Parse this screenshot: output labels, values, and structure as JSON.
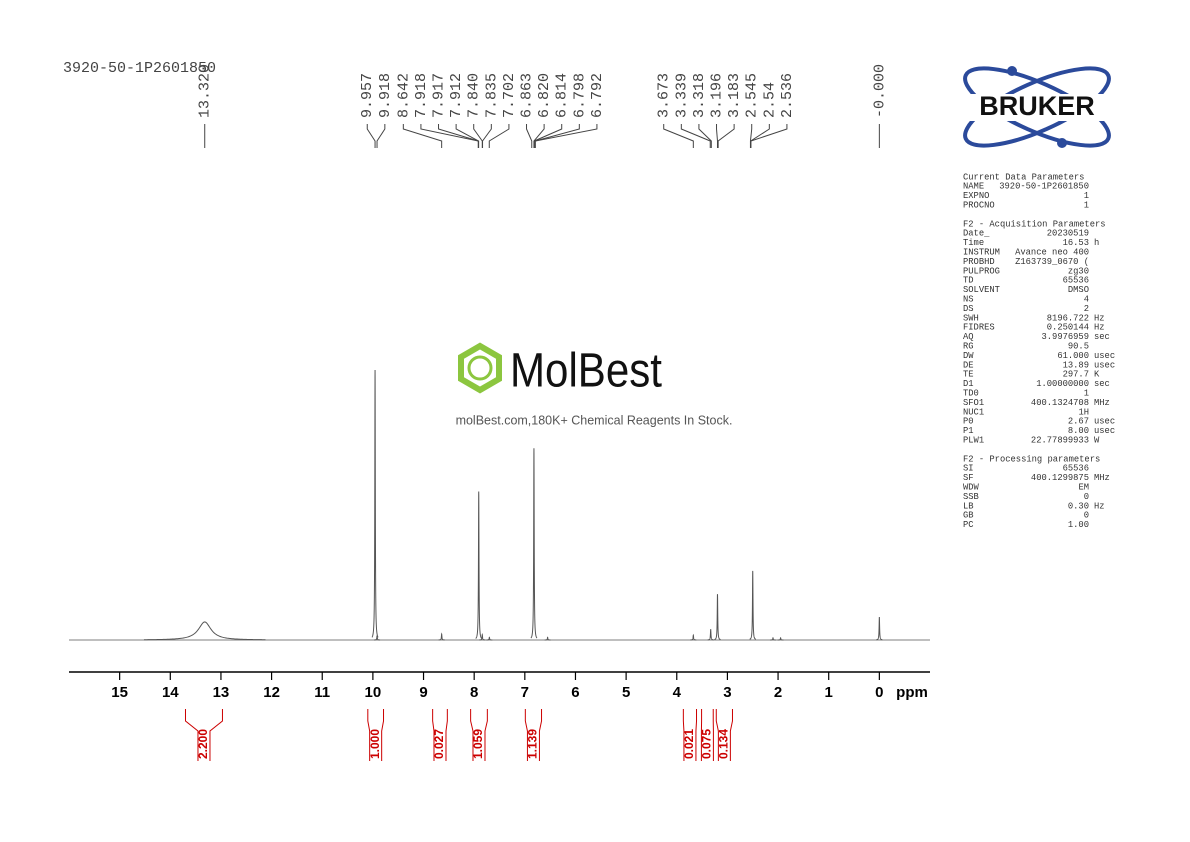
{
  "chart_data": {
    "type": "nmr",
    "sample_name": "3920-50-1P2601850",
    "xlim": [
      16,
      -1
    ],
    "xticks": [
      15,
      14,
      13,
      12,
      11,
      10,
      9,
      8,
      7,
      6,
      5,
      4,
      3,
      2,
      1,
      0
    ],
    "xlabel": "ppm",
    "ylim": [
      0,
      100
    ],
    "color": "#555555",
    "peaks": {
      "x": [
        13.32,
        9.957,
        9.918,
        8.642,
        7.91,
        7.84,
        7.7,
        6.82,
        6.55,
        3.673,
        3.33,
        3.196,
        2.5,
        2.1,
        1.95,
        0
      ],
      "values": [
        6.7,
        100,
        1.5,
        2.2,
        55,
        2,
        1,
        71,
        1,
        1.8,
        4,
        17,
        25.6,
        0.8,
        0.8,
        8.5
      ],
      "widths": [
        0.15,
        0.006,
        0.006,
        0.006,
        0.006,
        0.006,
        0.006,
        0.006,
        0.006,
        0.006,
        0.006,
        0.006,
        0.006,
        0.006,
        0.006,
        0.006
      ]
    },
    "peak_picks": [
      {
        "value": 13.32,
        "label": "13.320"
      },
      9.957,
      9.918,
      8.642,
      7.918,
      7.917,
      7.912,
      {
        "value": 7.84,
        "label": "7.840"
      },
      7.835,
      7.702,
      6.863,
      {
        "value": 6.82,
        "label": "6.820"
      },
      6.814,
      6.798,
      6.792,
      3.673,
      3.339,
      3.318,
      3.196,
      3.183,
      2.545,
      2.54,
      2.536,
      {
        "value": 0,
        "label": "-0.000"
      }
    ],
    "integrals": {
      "values": [
        2.2,
        1,
        0.027,
        1.059,
        1.139,
        0.021,
        0.075,
        0.134
      ],
      "value_labels": [
        "2.200",
        "1.000",
        "0.027",
        "1.059",
        "1.139",
        "0.021",
        "0.075",
        "0.134"
      ],
      "ranges": [
        [
          13.7,
          12.97
        ],
        [
          10.1,
          9.79
        ],
        [
          8.82,
          8.53
        ],
        [
          8.07,
          7.74
        ],
        [
          6.99,
          6.67
        ],
        [
          3.87,
          3.61
        ],
        [
          3.51,
          3.28
        ],
        [
          3.22,
          2.9
        ]
      ],
      "color": "#cc0000"
    }
  },
  "watermark": {
    "title": "MolBest",
    "subtitle": "molBest.com,180K+ Chemical Reagents In Stock."
  },
  "logo": "BRUKER",
  "parameters": [
    {
      "title": "Current Data Parameters",
      "rows": [
        [
          "NAME",
          "3920-50-1P2601850"
        ],
        [
          "EXPNO",
          "1"
        ],
        [
          "PROCNO",
          "1"
        ]
      ]
    },
    {
      "title": "F2 - Acquisition Parameters",
      "rows": [
        [
          "Date_",
          "20230519"
        ],
        [
          "Time",
          "16.53",
          "h"
        ],
        [
          "INSTRUM",
          "Avance neo 400"
        ],
        [
          "PROBHD",
          "Z163739_0670 ("
        ],
        [
          "PULPROG",
          "zg30"
        ],
        [
          "TD",
          "65536"
        ],
        [
          "SOLVENT",
          "DMSO"
        ],
        [
          "NS",
          "4"
        ],
        [
          "DS",
          "2"
        ],
        [
          "SWH",
          "8196.722",
          "Hz"
        ],
        [
          "FIDRES",
          "0.250144",
          "Hz"
        ],
        [
          "AQ",
          "3.9976959",
          "sec"
        ],
        [
          "RG",
          "90.5"
        ],
        [
          "DW",
          "61.000",
          "usec"
        ],
        [
          "DE",
          "13.89",
          "usec"
        ],
        [
          "TE",
          "297.7",
          "K"
        ],
        [
          "D1",
          "1.00000000",
          "sec"
        ],
        [
          "TD0",
          "1"
        ],
        [
          "SFO1",
          "400.1324708",
          "MHz"
        ],
        [
          "NUC1",
          "1H"
        ],
        [
          "P0",
          "2.67",
          "usec"
        ],
        [
          "P1",
          "8.00",
          "usec"
        ],
        [
          "PLW1",
          "22.77899933",
          "W"
        ]
      ]
    },
    {
      "title": "F2 - Processing parameters",
      "rows": [
        [
          "SI",
          "65536"
        ],
        [
          "SF",
          "400.1299875",
          "MHz"
        ],
        [
          "WDW",
          "EM"
        ],
        [
          "SSB",
          "0"
        ],
        [
          "LB",
          "0.30",
          "Hz"
        ],
        [
          "GB",
          "0"
        ],
        [
          "PC",
          "1.00"
        ]
      ]
    }
  ]
}
